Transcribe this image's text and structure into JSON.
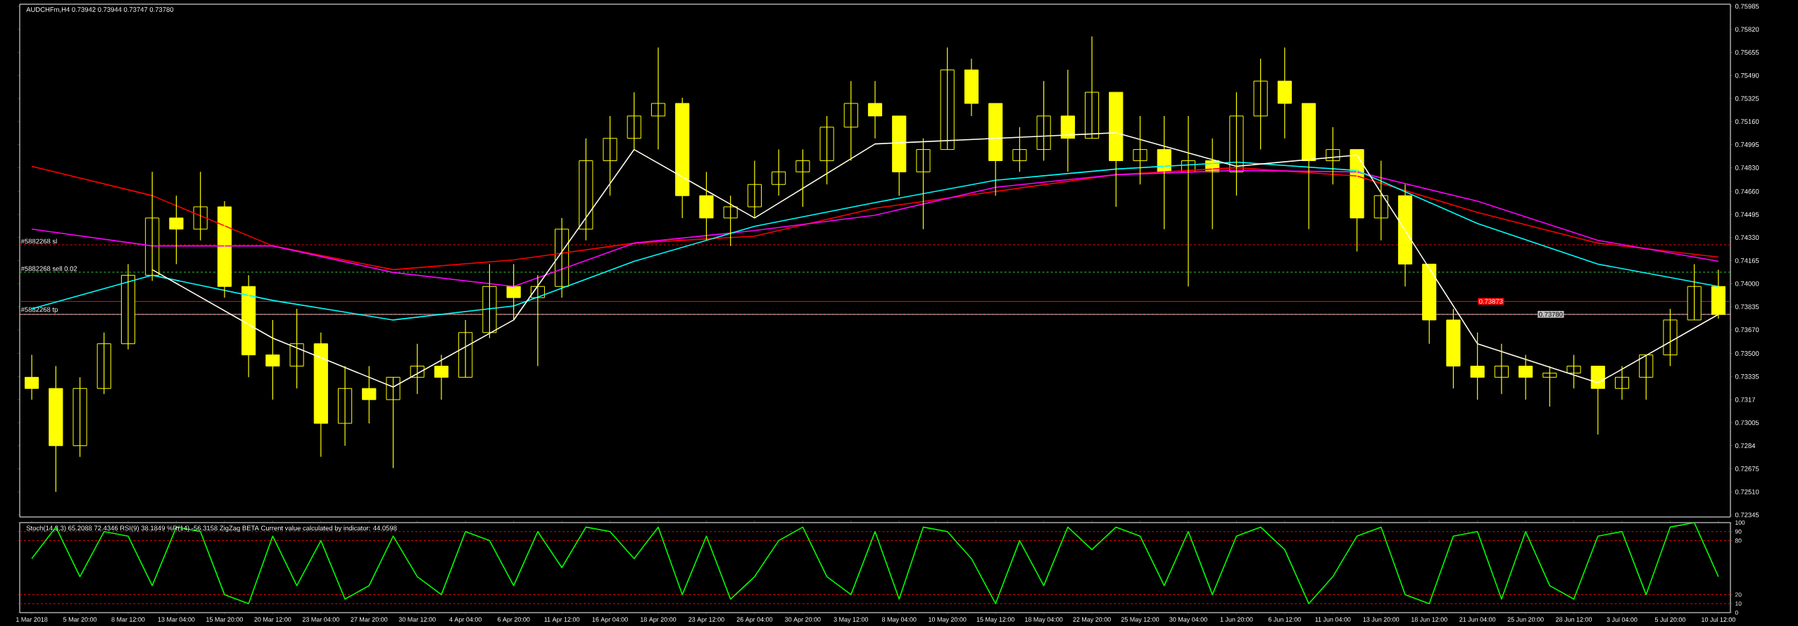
{
  "chart_data": [
    {
      "type": "candlestick",
      "title": "AUDCHFm,H4  0.73942 0.73944 0.73747 0.73780",
      "color": "#ffff00",
      "tick_labels": "y",
      "categories": [
        null,
        null,
        null,
        null,
        null,
        null,
        null,
        null,
        null,
        null,
        null,
        null,
        null,
        null,
        null,
        null,
        null,
        null,
        null,
        null,
        null,
        null,
        null,
        null,
        null,
        null,
        null,
        null,
        null,
        null,
        null,
        null,
        null,
        null,
        null,
        null,
        null,
        null,
        null,
        null,
        null,
        null,
        null,
        null,
        null,
        null,
        null,
        null,
        null,
        null,
        null,
        null,
        null,
        null,
        null,
        null,
        null,
        null,
        null,
        null,
        null,
        null,
        null,
        null,
        null,
        null,
        null,
        null,
        null,
        null,
        null
      ],
      "ohlc": [
        [
          0.7333,
          0.7349,
          0.7317,
          0.7325
        ],
        [
          0.7325,
          0.7341,
          0.7251,
          0.7284
        ],
        [
          0.7284,
          0.7333,
          0.7276,
          0.7325
        ],
        [
          0.7325,
          0.7365,
          0.7321,
          0.7357
        ],
        [
          0.7357,
          0.7414,
          0.7353,
          0.7406
        ],
        [
          0.7406,
          0.748,
          0.7402,
          0.7447
        ],
        [
          0.7447,
          0.7463,
          0.7414,
          0.7439
        ],
        [
          0.7439,
          0.748,
          0.7431,
          0.7455
        ],
        [
          0.7455,
          0.7459,
          0.739,
          0.7398
        ],
        [
          0.7398,
          0.7406,
          0.7333,
          0.7349
        ],
        [
          0.7349,
          0.7374,
          0.7317,
          0.7341
        ],
        [
          0.7341,
          0.7382,
          0.7325,
          0.7357
        ],
        [
          0.7357,
          0.7365,
          0.7276,
          0.73
        ],
        [
          0.73,
          0.7341,
          0.7284,
          0.7325
        ],
        [
          0.7325,
          0.7341,
          0.73,
          0.7317
        ],
        [
          0.7317,
          0.7333,
          0.7268,
          0.7333
        ],
        [
          0.7333,
          0.7357,
          0.7321,
          0.7341
        ],
        [
          0.7341,
          0.7349,
          0.7317,
          0.7333
        ],
        [
          0.7333,
          0.7374,
          0.7333,
          0.7365
        ],
        [
          0.7365,
          0.7414,
          0.7361,
          0.7398
        ],
        [
          0.7398,
          0.7414,
          0.7374,
          0.739
        ],
        [
          0.739,
          0.7406,
          0.7341,
          0.7398
        ],
        [
          0.7398,
          0.7447,
          0.739,
          0.7439
        ],
        [
          0.7439,
          0.7504,
          0.7431,
          0.7488
        ],
        [
          0.7488,
          0.752,
          0.7463,
          0.7504
        ],
        [
          0.7504,
          0.7537,
          0.7496,
          0.752
        ],
        [
          0.752,
          0.7569,
          0.7496,
          0.7529
        ],
        [
          0.7529,
          0.7533,
          0.7447,
          0.7463
        ],
        [
          0.7463,
          0.748,
          0.7431,
          0.7447
        ],
        [
          0.7447,
          0.7463,
          0.7427,
          0.7455
        ],
        [
          0.7455,
          0.7488,
          0.7447,
          0.7471
        ],
        [
          0.7471,
          0.7496,
          0.7463,
          0.748
        ],
        [
          0.748,
          0.7496,
          0.7455,
          0.7488
        ],
        [
          0.7488,
          0.752,
          0.7471,
          0.7512
        ],
        [
          0.7512,
          0.7545,
          0.7488,
          0.7529
        ],
        [
          0.7529,
          0.7545,
          0.7504,
          0.752
        ],
        [
          0.752,
          0.752,
          0.7463,
          0.748
        ],
        [
          0.748,
          0.7504,
          0.7439,
          0.7496
        ],
        [
          0.7496,
          0.7569,
          0.7496,
          0.7553
        ],
        [
          0.7553,
          0.7561,
          0.752,
          0.7529
        ],
        [
          0.7529,
          0.7529,
          0.7463,
          0.7488
        ],
        [
          0.7488,
          0.7512,
          0.748,
          0.7496
        ],
        [
          0.7496,
          0.7545,
          0.7488,
          0.752
        ],
        [
          0.752,
          0.7553,
          0.748,
          0.7504
        ],
        [
          0.7504,
          0.7577,
          0.7504,
          0.7537
        ],
        [
          0.7537,
          0.7537,
          0.7455,
          0.7488
        ],
        [
          0.7488,
          0.752,
          0.7471,
          0.7496
        ],
        [
          0.7496,
          0.752,
          0.7439,
          0.748
        ],
        [
          0.748,
          0.752,
          0.7398,
          0.7488
        ],
        [
          0.7488,
          0.7504,
          0.7439,
          0.748
        ],
        [
          0.748,
          0.7537,
          0.7463,
          0.752
        ],
        [
          0.752,
          0.7561,
          0.7496,
          0.7545
        ],
        [
          0.7545,
          0.7569,
          0.7504,
          0.7529
        ],
        [
          0.7529,
          0.7529,
          0.7439,
          0.7488
        ],
        [
          0.7488,
          0.7512,
          0.7471,
          0.7496
        ],
        [
          0.7496,
          0.7496,
          0.7423,
          0.7447
        ],
        [
          0.7447,
          0.7488,
          0.7431,
          0.7463
        ],
        [
          0.7463,
          0.7471,
          0.7398,
          0.7414
        ],
        [
          0.7414,
          0.7414,
          0.7357,
          0.7374
        ],
        [
          0.7374,
          0.7382,
          0.7325,
          0.7341
        ],
        [
          0.7341,
          0.7365,
          0.7317,
          0.7333
        ],
        [
          0.7333,
          0.7357,
          0.7321,
          0.7341
        ],
        [
          0.7341,
          0.7349,
          0.7317,
          0.7333
        ],
        [
          0.7333,
          0.7341,
          0.7312,
          0.7336
        ],
        [
          0.7336,
          0.7349,
          0.7325,
          0.7341
        ],
        [
          0.7341,
          0.7341,
          0.7292,
          0.7325
        ],
        [
          0.7325,
          0.7341,
          0.7317,
          0.7333
        ],
        [
          0.7333,
          0.7349,
          0.7317,
          0.7349
        ],
        [
          0.7349,
          0.7382,
          0.7341,
          0.7374
        ],
        [
          0.7374,
          0.7414,
          0.7374,
          0.7398
        ],
        [
          0.7398,
          0.741,
          0.7375,
          0.7378
        ]
      ],
      "series": [
        {
          "type": "line",
          "color": "#ff0000",
          "values": [
            0.7484,
            null,
            null,
            null,
            null,
            0.7463,
            null,
            null,
            null,
            null,
            0.7427,
            null,
            null,
            null,
            null,
            0.741,
            null,
            null,
            null,
            null,
            0.7417,
            null,
            null,
            null,
            null,
            0.7429,
            null,
            null,
            null,
            null,
            0.7434,
            null,
            null,
            null,
            null,
            0.7454,
            null,
            null,
            null,
            null,
            0.7466,
            null,
            null,
            null,
            null,
            0.7478,
            null,
            null,
            null,
            null,
            0.7483,
            null,
            null,
            null,
            null,
            0.7477,
            null,
            null,
            null,
            null,
            0.7451,
            null,
            null,
            null,
            null,
            0.7429,
            null,
            null,
            null,
            null,
            0.7419
          ]
        },
        {
          "type": "line",
          "color": "#ff00ff",
          "values": [
            0.7439,
            null,
            null,
            null,
            null,
            0.7427,
            null,
            null,
            null,
            null,
            0.7427,
            null,
            null,
            null,
            null,
            0.7408,
            null,
            null,
            null,
            null,
            0.7398,
            null,
            null,
            null,
            null,
            0.7429,
            null,
            null,
            null,
            null,
            0.7438,
            null,
            null,
            null,
            null,
            0.7449,
            null,
            null,
            null,
            null,
            0.7469,
            null,
            null,
            null,
            null,
            0.7478,
            null,
            null,
            null,
            null,
            0.7481,
            null,
            null,
            null,
            null,
            0.748,
            null,
            null,
            null,
            null,
            0.7459,
            null,
            null,
            null,
            null,
            0.7431,
            null,
            null,
            null,
            null,
            0.7416
          ]
        },
        {
          "type": "line",
          "color": "#00ffff",
          "values": [
            0.7382,
            null,
            null,
            null,
            null,
            0.7406,
            null,
            null,
            null,
            null,
            0.7388,
            null,
            null,
            null,
            null,
            0.7374,
            null,
            null,
            null,
            null,
            0.7384,
            null,
            null,
            null,
            null,
            0.7416,
            null,
            null,
            null,
            null,
            0.7441,
            null,
            null,
            null,
            null,
            0.7458,
            null,
            null,
            null,
            null,
            0.7474,
            null,
            null,
            null,
            null,
            0.7482,
            null,
            null,
            null,
            null,
            0.7487,
            null,
            null,
            null,
            null,
            0.7481,
            null,
            null,
            null,
            null,
            0.7443,
            null,
            null,
            null,
            null,
            0.7414,
            null,
            null,
            null,
            null,
            0.7398
          ]
        },
        {
          "type": "line",
          "color": "#fffff0",
          "values": [
            null,
            null,
            null,
            null,
            null,
            0.741,
            null,
            null,
            null,
            null,
            0.7361,
            null,
            null,
            null,
            null,
            0.7326,
            null,
            null,
            null,
            null,
            0.7374,
            null,
            null,
            null,
            null,
            0.7496,
            null,
            null,
            null,
            null,
            0.7447,
            null,
            null,
            null,
            null,
            0.75,
            null,
            null,
            null,
            null,
            0.7504,
            null,
            null,
            null,
            null,
            0.7508,
            null,
            null,
            null,
            null,
            0.7484,
            null,
            null,
            null,
            null,
            0.7492,
            null,
            null,
            null,
            null,
            0.7357,
            null,
            null,
            null,
            null,
            0.7329,
            null,
            null,
            null,
            null,
            0.7378
          ]
        }
      ],
      "ylim": [
        0.7233,
        0.76
      ],
      "yticks": [
        0.72345,
        {
          "value": 0.7251,
          "label": "0.72510"
        },
        0.72675,
        0.7284,
        0.73005,
        0.7317,
        0.73335,
        {
          "value": 0.735,
          "label": "0.73500"
        },
        {
          "value": 0.7367,
          "label": "0.73670"
        },
        0.73835,
        {
          "value": 0.74,
          "label": "0.74000"
        },
        0.74165,
        {
          "value": 0.7433,
          "label": "0.74330"
        },
        0.74495,
        {
          "value": 0.7466,
          "label": "0.74660"
        },
        {
          "value": 0.7483,
          "label": "0.74830"
        },
        0.74995,
        {
          "value": 0.7516,
          "label": "0.75160"
        },
        0.75325,
        {
          "value": 0.7549,
          "label": "0.75490"
        },
        0.75655,
        {
          "value": 0.7582,
          "label": "0.75820"
        },
        0.75985
      ],
      "ref_lines": [
        {
          "axis": "y",
          "value": 0.74278,
          "label": "#5882268 sl",
          "color": "#ff0000",
          "line_style": "dashed"
        },
        {
          "axis": "y",
          "value": 0.74082,
          "label": "#5882268 sell 0.02",
          "color": "#32cd32",
          "line_style": "dashed"
        },
        {
          "axis": "y",
          "value": 0.73873,
          "label": "0.73873",
          "color": "#ff0000",
          "line_style": "solid"
        },
        {
          "axis": "y",
          "value": 0.7378,
          "label": "#5882268 tp",
          "color": "#ff0000",
          "line_style": "dashed"
        },
        {
          "axis": "y",
          "value": 0.7378,
          "label": "0.73780",
          "color": "#c0c0c0",
          "line_style": "solid"
        }
      ]
    },
    {
      "type": "line",
      "title": "Stoch(14,3,3) 65.2088 72.4346  RSI(9) 38.1849  %R(14) -56.3158  ZigZag BETA    Current value calculated by indicator: 44.0598",
      "categories": [
        "1 Mar 2018",
        null,
        "5 Mar 20:00",
        null,
        "8 Mar 12:00",
        null,
        "13 Mar 04:00",
        null,
        "15 Mar 20:00",
        null,
        "20 Mar 12:00",
        null,
        "23 Mar 04:00",
        null,
        "27 Mar 20:00",
        null,
        "30 Mar 12:00",
        null,
        "4 Apr 04:00",
        null,
        "6 Apr 20:00",
        null,
        "11 Apr 12:00",
        null,
        "16 Apr 04:00",
        null,
        "18 Apr 20:00",
        null,
        "23 Apr 12:00",
        null,
        "26 Apr 04:00",
        null,
        "30 Apr 20:00",
        null,
        "3 May 12:00",
        null,
        "8 May 04:00",
        null,
        "10 May 20:00",
        null,
        "15 May 12:00",
        null,
        "18 May 04:00",
        null,
        "22 May 20:00",
        null,
        "25 May 12:00",
        null,
        "30 May 04:00",
        null,
        "1 Jun 20:00",
        null,
        "6 Jun 12:00",
        null,
        "11 Jun 04:00",
        null,
        "13 Jun 20:00",
        null,
        "18 Jun 12:00",
        null,
        "21 Jun 04:00",
        null,
        "25 Jun 20:00",
        null,
        "28 Jun 12:00",
        null,
        "3 Jul 04:00",
        null,
        "5 Jul 20:00",
        null,
        "10 Jul 12:00"
      ],
      "series": [
        {
          "color": "#00ff00",
          "values": [
            60,
            95,
            40,
            90,
            85,
            30,
            95,
            90,
            20,
            10,
            85,
            30,
            80,
            15,
            30,
            85,
            40,
            20,
            90,
            80,
            30,
            90,
            50,
            95,
            90,
            60,
            95,
            20,
            85,
            15,
            40,
            80,
            95,
            40,
            20,
            90,
            15,
            95,
            90,
            60,
            10,
            80,
            30,
            95,
            70,
            95,
            85,
            30,
            90,
            20,
            85,
            95,
            70,
            10,
            40,
            85,
            95,
            20,
            10,
            85,
            90,
            15,
            90,
            30,
            15,
            85,
            90,
            20,
            95,
            100,
            40
          ]
        }
      ],
      "ylim": [
        0,
        100
      ],
      "yticks": [
        0,
        10,
        20,
        80,
        90,
        100
      ],
      "ref_lines": [
        {
          "axis": "y",
          "value": 10,
          "color": "#ff0000",
          "line_style": "dashed"
        },
        {
          "axis": "y",
          "value": 20,
          "color": "#ff0000",
          "line_style": "dashed"
        },
        {
          "axis": "y",
          "value": 80,
          "color": "#ff0000",
          "line_style": "dashed"
        },
        {
          "axis": "y",
          "value": 90,
          "color": "#ff0000",
          "line_style": "dashed"
        }
      ]
    }
  ]
}
